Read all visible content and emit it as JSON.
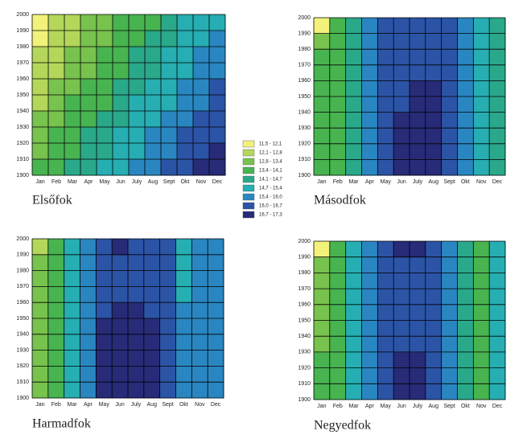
{
  "chart_data": [
    {
      "type": "contour",
      "title": "Elsőfok",
      "categories": [
        "Jan",
        "Feb",
        "Mar",
        "Apr",
        "May",
        "Jun",
        "July",
        "Aug",
        "Sept",
        "Okt",
        "Nov",
        "Dec"
      ],
      "y": [
        1905,
        1915,
        1925,
        1935,
        1945,
        1955,
        1965,
        1975,
        1985,
        1995
      ],
      "z": [
        [
          13.5,
          13.8,
          14.1,
          14.5,
          14.8,
          15.1,
          15.4,
          15.7,
          16.1,
          16.4,
          16.7,
          17.0
        ],
        [
          13.3,
          13.6,
          14.0,
          14.3,
          14.6,
          14.9,
          15.2,
          15.6,
          15.9,
          16.2,
          16.5,
          16.8
        ],
        [
          13.1,
          13.4,
          13.8,
          14.1,
          14.4,
          14.7,
          15.0,
          15.4,
          15.7,
          16.0,
          16.3,
          16.6
        ],
        [
          12.9,
          13.3,
          13.6,
          13.9,
          14.2,
          14.5,
          14.9,
          15.2,
          15.5,
          15.8,
          16.1,
          16.5
        ],
        [
          12.7,
          13.1,
          13.4,
          13.7,
          14.0,
          14.3,
          14.7,
          15.0,
          15.3,
          15.6,
          15.9,
          16.3
        ],
        [
          12.6,
          12.9,
          13.2,
          13.5,
          13.8,
          14.2,
          14.5,
          14.8,
          15.1,
          15.4,
          15.8,
          16.1
        ],
        [
          12.4,
          12.7,
          13.0,
          13.3,
          13.6,
          14.0,
          14.3,
          14.6,
          14.9,
          15.2,
          15.6,
          15.9
        ],
        [
          12.2,
          12.5,
          12.8,
          13.1,
          13.5,
          13.8,
          14.1,
          14.4,
          14.7,
          15.1,
          15.4,
          15.7
        ],
        [
          12.0,
          12.3,
          12.6,
          12.9,
          13.3,
          13.6,
          13.9,
          14.2,
          14.5,
          14.9,
          15.2,
          15.5
        ],
        [
          11.8,
          12.1,
          12.4,
          12.8,
          13.1,
          13.4,
          13.7,
          14.0,
          14.3,
          14.7,
          15.0,
          15.3
        ]
      ],
      "ylim": [
        1900,
        2000
      ],
      "yticks": [
        1900,
        1910,
        1920,
        1930,
        1940,
        1950,
        1960,
        1970,
        1980,
        1990,
        2000
      ],
      "grid": true
    },
    {
      "type": "contour",
      "title": "Másodfok",
      "categories": [
        "Jan",
        "Feb",
        "Mar",
        "Apr",
        "May",
        "Jun",
        "July",
        "Aug",
        "Sept",
        "Okt",
        "Nov",
        "Dec"
      ],
      "y": [
        1905,
        1915,
        1925,
        1935,
        1945,
        1955,
        1965,
        1975,
        1985,
        1995
      ],
      "z": [
        [
          13.6,
          13.9,
          14.6,
          15.5,
          16.2,
          16.8,
          16.9,
          16.8,
          16.2,
          15.6,
          15.0,
          14.3
        ],
        [
          13.6,
          13.9,
          14.6,
          15.5,
          16.2,
          16.8,
          16.9,
          16.8,
          16.2,
          15.6,
          15.0,
          14.3
        ],
        [
          13.6,
          13.9,
          14.6,
          15.5,
          16.2,
          16.8,
          16.9,
          16.8,
          16.2,
          15.6,
          15.0,
          14.3
        ],
        [
          13.6,
          13.9,
          14.6,
          15.5,
          16.2,
          16.8,
          16.9,
          16.8,
          16.2,
          15.6,
          15.0,
          14.3
        ],
        [
          13.6,
          13.9,
          14.6,
          15.5,
          16.2,
          16.5,
          16.8,
          16.8,
          16.2,
          15.6,
          15.0,
          14.3
        ],
        [
          13.6,
          13.9,
          14.6,
          15.5,
          16.2,
          16.5,
          16.8,
          16.8,
          16.2,
          15.6,
          15.0,
          14.3
        ],
        [
          13.6,
          13.9,
          14.6,
          15.5,
          16.2,
          16.5,
          16.6,
          16.5,
          16.2,
          15.6,
          15.0,
          14.3
        ],
        [
          13.6,
          13.9,
          14.6,
          15.5,
          16.2,
          16.5,
          16.6,
          16.5,
          16.2,
          15.6,
          15.0,
          14.3
        ],
        [
          12.9,
          13.7,
          14.5,
          15.5,
          16.2,
          16.5,
          16.6,
          16.5,
          16.2,
          15.6,
          15.0,
          14.3
        ],
        [
          12.0,
          13.5,
          14.4,
          15.5,
          16.2,
          16.5,
          16.6,
          16.5,
          16.2,
          15.6,
          15.0,
          14.3
        ]
      ],
      "ylim": [
        1900,
        2000
      ],
      "yticks": [
        1900,
        1910,
        1920,
        1930,
        1940,
        1950,
        1960,
        1970,
        1980,
        1990,
        2000
      ],
      "grid": true
    },
    {
      "type": "contour",
      "title": "Harmadfok",
      "categories": [
        "Jan",
        "Feb",
        "Mar",
        "Apr",
        "May",
        "Jun",
        "July",
        "Aug",
        "Sept",
        "Okt",
        "Nov",
        "Dec"
      ],
      "y": [
        1905,
        1915,
        1925,
        1935,
        1945,
        1955,
        1965,
        1975,
        1985,
        1995
      ],
      "z": [
        [
          13.3,
          14.0,
          14.8,
          15.6,
          16.8,
          16.9,
          16.9,
          16.8,
          16.3,
          15.6,
          15.8,
          15.9
        ],
        [
          13.3,
          14.0,
          14.8,
          15.6,
          16.8,
          16.9,
          16.9,
          16.8,
          16.3,
          15.6,
          15.8,
          15.9
        ],
        [
          13.3,
          14.0,
          14.8,
          15.6,
          16.8,
          16.9,
          16.9,
          16.8,
          16.3,
          15.6,
          15.8,
          15.9
        ],
        [
          13.3,
          14.0,
          14.8,
          15.6,
          16.8,
          16.9,
          16.9,
          16.8,
          16.3,
          15.6,
          15.8,
          15.9
        ],
        [
          13.3,
          14.0,
          14.8,
          15.6,
          16.8,
          16.9,
          16.9,
          16.8,
          16.3,
          15.6,
          15.8,
          15.9
        ],
        [
          13.3,
          14.0,
          14.8,
          15.6,
          16.4,
          16.8,
          16.8,
          16.5,
          16.2,
          15.4,
          15.7,
          15.8
        ],
        [
          13.3,
          14.0,
          14.8,
          15.6,
          16.3,
          16.5,
          16.5,
          16.4,
          16.1,
          15.2,
          15.5,
          15.8
        ],
        [
          13.3,
          14.0,
          14.8,
          15.6,
          16.3,
          16.5,
          16.5,
          16.4,
          16.1,
          15.2,
          15.5,
          15.8
        ],
        [
          13.3,
          14.0,
          14.8,
          15.6,
          16.3,
          16.5,
          16.5,
          16.4,
          16.1,
          15.2,
          15.5,
          15.8
        ],
        [
          12.3,
          14.0,
          14.8,
          15.6,
          16.3,
          16.8,
          16.6,
          16.4,
          16.1,
          15.2,
          15.5,
          15.8
        ]
      ],
      "ylim": [
        1900,
        2000
      ],
      "yticks": [
        1900,
        1910,
        1920,
        1930,
        1940,
        1950,
        1960,
        1970,
        1980,
        1990,
        2000
      ],
      "grid": true
    },
    {
      "type": "contour",
      "title": "Negyedfok",
      "categories": [
        "Jan",
        "Feb",
        "Mar",
        "Apr",
        "May",
        "Jun",
        "July",
        "Aug",
        "Sept",
        "Okt",
        "Nov",
        "Dec"
      ],
      "y": [
        1905,
        1915,
        1925,
        1935,
        1945,
        1955,
        1965,
        1975,
        1985,
        1995
      ],
      "z": [
        [
          13.5,
          14.0,
          14.8,
          15.6,
          16.3,
          16.8,
          16.9,
          16.3,
          15.6,
          14.6,
          13.9,
          14.8
        ],
        [
          13.5,
          14.0,
          14.8,
          15.6,
          16.3,
          16.8,
          16.9,
          16.3,
          15.6,
          14.6,
          13.9,
          14.8
        ],
        [
          13.5,
          14.0,
          14.8,
          15.6,
          16.3,
          16.8,
          16.9,
          16.3,
          15.6,
          14.6,
          13.9,
          14.8
        ],
        [
          13.3,
          14.0,
          14.8,
          15.6,
          16.3,
          16.5,
          16.6,
          16.3,
          15.5,
          14.6,
          13.6,
          14.7
        ],
        [
          13.3,
          14.0,
          14.8,
          15.6,
          16.3,
          16.5,
          16.6,
          16.3,
          15.5,
          14.6,
          13.6,
          14.7
        ],
        [
          13.3,
          14.0,
          14.8,
          15.6,
          16.3,
          16.5,
          16.6,
          16.3,
          15.5,
          14.6,
          13.6,
          14.7
        ],
        [
          13.3,
          14.0,
          14.8,
          15.6,
          16.3,
          16.5,
          16.6,
          16.3,
          15.5,
          14.6,
          13.6,
          14.7
        ],
        [
          13.0,
          14.0,
          14.8,
          15.6,
          16.3,
          16.5,
          16.6,
          16.3,
          15.5,
          14.6,
          13.4,
          14.7
        ],
        [
          13.0,
          14.0,
          14.8,
          15.6,
          16.3,
          16.5,
          16.6,
          16.3,
          15.5,
          14.6,
          13.4,
          14.7
        ],
        [
          12.0,
          13.8,
          14.8,
          15.6,
          16.3,
          16.8,
          16.8,
          16.3,
          15.5,
          14.6,
          13.9,
          14.8
        ]
      ],
      "ylim": [
        1900,
        2000
      ],
      "yticks": [
        1900,
        1910,
        1920,
        1930,
        1940,
        1950,
        1960,
        1970,
        1980,
        1990,
        2000
      ],
      "grid": true
    }
  ],
  "legend": {
    "levels": [
      11.5,
      12.1,
      12.8,
      13.4,
      14.1,
      14.7,
      15.4,
      16.0,
      16.7,
      17.3
    ],
    "labels": [
      "11,5 - 12,1",
      "12,1 - 12,8",
      "12,8 - 13,4",
      "13,4 - 14,1",
      "14,1 - 14,7",
      "14,7 - 15,4",
      "15,4 - 16,0",
      "16,0 - 16,7",
      "16,7 - 17,3"
    ],
    "colors": [
      "#f2f27a",
      "#b4d65a",
      "#78c24e",
      "#48b450",
      "#2aa88a",
      "#26aeb2",
      "#2a86c0",
      "#2c54a6",
      "#272b78"
    ]
  }
}
